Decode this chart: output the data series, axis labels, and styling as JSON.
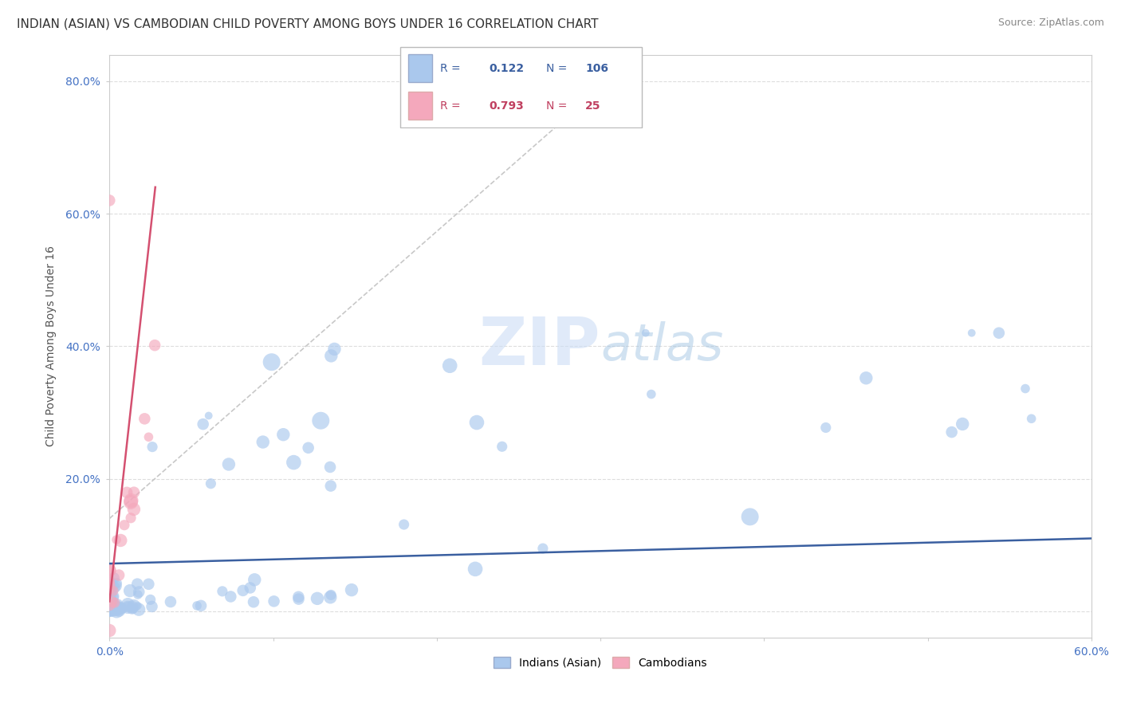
{
  "title": "INDIAN (ASIAN) VS CAMBODIAN CHILD POVERTY AMONG BOYS UNDER 16 CORRELATION CHART",
  "source": "Source: ZipAtlas.com",
  "ylabel": "Child Poverty Among Boys Under 16",
  "xlim": [
    0.0,
    0.6
  ],
  "ylim": [
    -0.04,
    0.84
  ],
  "xtick_positions": [
    0.0,
    0.1,
    0.2,
    0.3,
    0.4,
    0.5,
    0.6
  ],
  "xtick_labels": [
    "0.0%",
    "",
    "",
    "",
    "",
    "",
    "60.0%"
  ],
  "ytick_positions": [
    0.0,
    0.2,
    0.4,
    0.6,
    0.8
  ],
  "ytick_labels": [
    "",
    "20.0%",
    "40.0%",
    "60.0%",
    "80.0%"
  ],
  "r_indian": 0.122,
  "n_indian": 106,
  "r_cambodian": 0.793,
  "n_cambodian": 25,
  "indian_color": "#aac8ed",
  "cambodian_color": "#f4a8bc",
  "indian_line_color": "#3a5fa0",
  "cambodian_line_color": "#d45070",
  "legend_labels": [
    "Indians (Asian)",
    "Cambodians"
  ],
  "background_color": "#ffffff",
  "grid_color": "#dddddd",
  "title_fontsize": 11,
  "label_fontsize": 10,
  "tick_fontsize": 10,
  "watermark_zip": "ZIP",
  "watermark_atlas": "atlas"
}
